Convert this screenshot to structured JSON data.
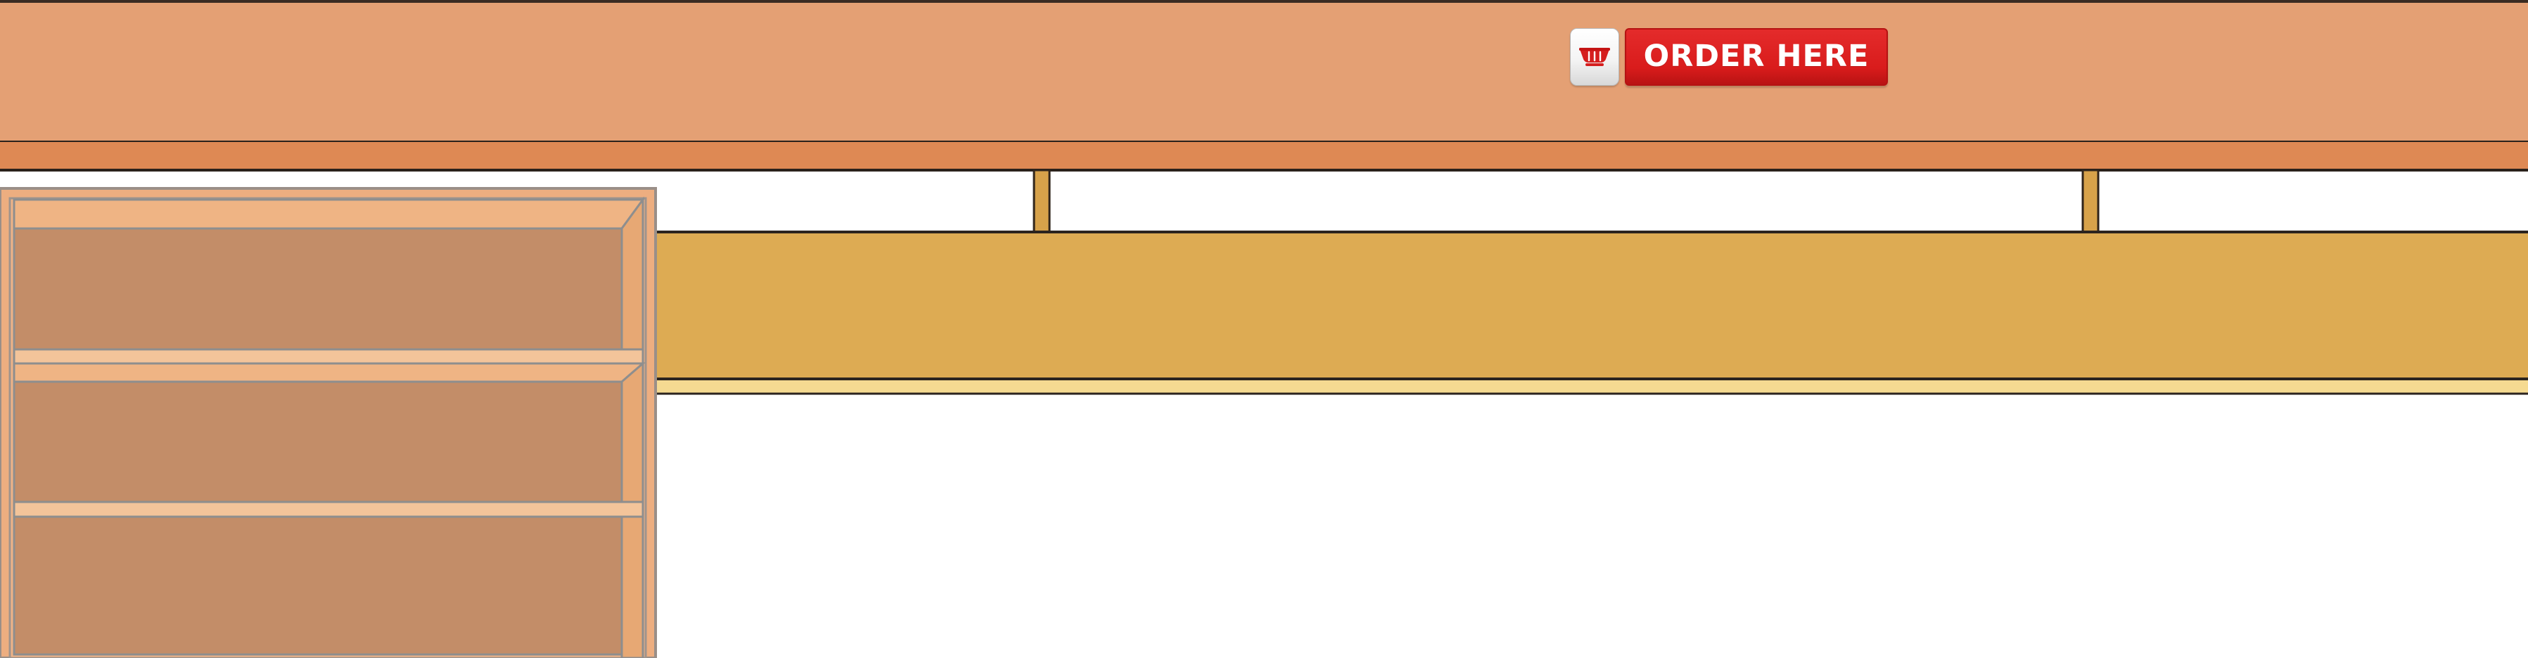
{
  "order_button": {
    "label": "ORDER HERE"
  },
  "icons": {
    "cart": "shopping-cart-icon"
  },
  "colors": {
    "upper_beam": "#e4a074",
    "lower_beam": "#de8954",
    "counter": "#ddab53",
    "counter_edge": "#f5da91",
    "shelf_frame": "#edae80",
    "shelf_back": "#c38d68",
    "order_button": "#d71d1d"
  }
}
